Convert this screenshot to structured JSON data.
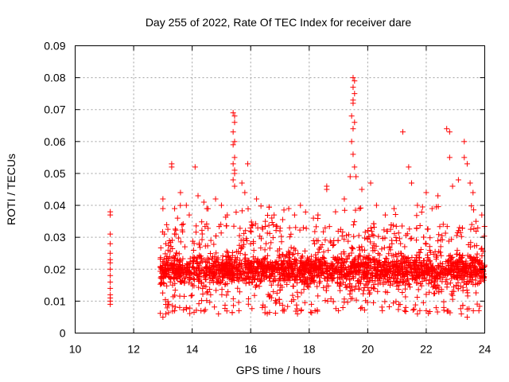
{
  "chart_data": {
    "type": "scatter",
    "title": "Day 255 of 2022, Rate Of TEC Index for receiver dare",
    "xlabel": "GPS time / hours",
    "ylabel": "ROTI / TECUs",
    "xlim": [
      10,
      24
    ],
    "ylim": [
      0,
      0.09
    ],
    "x_ticks": [
      10,
      12,
      14,
      16,
      18,
      20,
      22,
      24
    ],
    "x_tick_labels": [
      "10",
      "12",
      "14",
      "16",
      "18",
      "20",
      "22",
      "24"
    ],
    "y_ticks": [
      0,
      0.01,
      0.02,
      0.03,
      0.04,
      0.05,
      0.06,
      0.07,
      0.08,
      0.09
    ],
    "y_tick_labels": [
      "0",
      "0.01",
      "0.02",
      "0.03",
      "0.04",
      "0.05",
      "0.06",
      "0.07",
      "0.08",
      "0.09"
    ],
    "grid": true,
    "marker": "plus",
    "color": "#ff0000",
    "series": [
      {
        "name": "ROTI",
        "points": [
          [
            11.2,
            0.038
          ],
          [
            11.2,
            0.037
          ],
          [
            11.2,
            0.031
          ],
          [
            11.2,
            0.028
          ],
          [
            11.2,
            0.025
          ],
          [
            11.2,
            0.023
          ],
          [
            11.2,
            0.022
          ],
          [
            11.2,
            0.02
          ],
          [
            11.2,
            0.018
          ],
          [
            11.2,
            0.016
          ],
          [
            11.2,
            0.014
          ],
          [
            11.2,
            0.012
          ],
          [
            11.2,
            0.011
          ],
          [
            11.2,
            0.01
          ],
          [
            11.2,
            0.009
          ],
          [
            13.0,
            0.042
          ],
          [
            13.0,
            0.039
          ],
          [
            13.05,
            0.031
          ],
          [
            13.1,
            0.028
          ],
          [
            13.3,
            0.053
          ],
          [
            13.3,
            0.052
          ],
          [
            13.4,
            0.039
          ],
          [
            13.5,
            0.036
          ],
          [
            13.6,
            0.044
          ],
          [
            13.8,
            0.04
          ],
          [
            13.9,
            0.037
          ],
          [
            14.1,
            0.052
          ],
          [
            14.2,
            0.043
          ],
          [
            14.4,
            0.041
          ],
          [
            14.5,
            0.039
          ],
          [
            14.8,
            0.042
          ],
          [
            15.0,
            0.04
          ],
          [
            15.2,
            0.037
          ],
          [
            15.4,
            0.069
          ],
          [
            15.45,
            0.068
          ],
          [
            15.45,
            0.066
          ],
          [
            15.4,
            0.063
          ],
          [
            15.45,
            0.06
          ],
          [
            15.4,
            0.059
          ],
          [
            15.45,
            0.055
          ],
          [
            15.4,
            0.053
          ],
          [
            15.45,
            0.051
          ],
          [
            15.45,
            0.05
          ],
          [
            15.4,
            0.048
          ],
          [
            15.45,
            0.046
          ],
          [
            15.7,
            0.047
          ],
          [
            15.8,
            0.044
          ],
          [
            15.9,
            0.053
          ],
          [
            16.2,
            0.042
          ],
          [
            16.5,
            0.035
          ],
          [
            16.8,
            0.037
          ],
          [
            17.0,
            0.032
          ],
          [
            17.3,
            0.039
          ],
          [
            17.5,
            0.037
          ],
          [
            17.7,
            0.04
          ],
          [
            17.8,
            0.033
          ],
          [
            18.3,
            0.037
          ],
          [
            18.6,
            0.046
          ],
          [
            18.6,
            0.045
          ],
          [
            18.9,
            0.038
          ],
          [
            19.2,
            0.042
          ],
          [
            19.4,
            0.049
          ],
          [
            19.5,
            0.08
          ],
          [
            19.55,
            0.079
          ],
          [
            19.5,
            0.077
          ],
          [
            19.55,
            0.075
          ],
          [
            19.5,
            0.073
          ],
          [
            19.5,
            0.072
          ],
          [
            19.45,
            0.068
          ],
          [
            19.55,
            0.066
          ],
          [
            19.5,
            0.064
          ],
          [
            19.45,
            0.06
          ],
          [
            19.5,
            0.056
          ],
          [
            19.55,
            0.052
          ],
          [
            19.6,
            0.049
          ],
          [
            19.8,
            0.045
          ],
          [
            20.1,
            0.047
          ],
          [
            20.3,
            0.04
          ],
          [
            20.6,
            0.037
          ],
          [
            20.9,
            0.039
          ],
          [
            21.2,
            0.063
          ],
          [
            21.4,
            0.052
          ],
          [
            21.5,
            0.047
          ],
          [
            21.7,
            0.04
          ],
          [
            22.0,
            0.044
          ],
          [
            22.2,
            0.039
          ],
          [
            22.4,
            0.043
          ],
          [
            22.7,
            0.064
          ],
          [
            22.8,
            0.063
          ],
          [
            22.8,
            0.055
          ],
          [
            22.9,
            0.046
          ],
          [
            23.1,
            0.048
          ],
          [
            23.3,
            0.06
          ],
          [
            23.3,
            0.055
          ],
          [
            23.4,
            0.053
          ],
          [
            23.5,
            0.047
          ],
          [
            23.6,
            0.044
          ],
          [
            23.7,
            0.035
          ],
          [
            23.9,
            0.037
          ],
          [
            13.2,
            0.009
          ],
          [
            13.4,
            0.007
          ],
          [
            13.8,
            0.008
          ],
          [
            14.3,
            0.007
          ],
          [
            14.9,
            0.006
          ],
          [
            15.6,
            0.007
          ],
          [
            16.4,
            0.008
          ],
          [
            17.1,
            0.007
          ],
          [
            17.6,
            0.006
          ],
          [
            18.2,
            0.007
          ],
          [
            19.0,
            0.007
          ],
          [
            19.8,
            0.008
          ],
          [
            20.5,
            0.007
          ],
          [
            21.3,
            0.008
          ],
          [
            22.0,
            0.007
          ],
          [
            22.6,
            0.008
          ],
          [
            23.2,
            0.006
          ],
          [
            23.8,
            0.007
          ],
          [
            13.0,
            0.005
          ],
          [
            13.1,
            0.006
          ],
          [
            21.7,
            0.006
          ],
          [
            23.4,
            0.005
          ]
        ],
        "dense_band": {
          "x_range": [
            12.9,
            24.0
          ],
          "y_core": [
            0.012,
            0.026
          ],
          "y_typical_max": 0.034,
          "y_typical_min": 0.006,
          "description": "several thousand dense ROTI samples"
        }
      }
    ]
  }
}
